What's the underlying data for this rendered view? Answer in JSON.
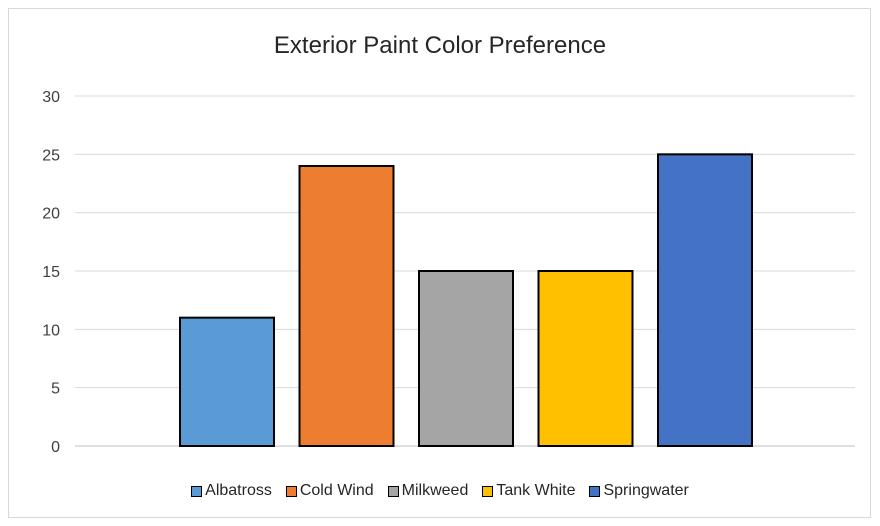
{
  "chart_data": {
    "type": "bar",
    "title": "Exterior Paint Color Preference",
    "xlabel": "",
    "ylabel": "",
    "ylim": [
      0,
      30
    ],
    "yticks": [
      0,
      5,
      10,
      15,
      20,
      25,
      30
    ],
    "grid": true,
    "legend_position": "bottom",
    "categories": [
      "Albatross",
      "Cold Wind",
      "Milkweed",
      "Tank White",
      "Springwater"
    ],
    "values": [
      11,
      24,
      15,
      15,
      25
    ],
    "colors": [
      "#5b9bd5",
      "#ed7d31",
      "#a5a5a5",
      "#ffc000",
      "#4472c4"
    ]
  }
}
